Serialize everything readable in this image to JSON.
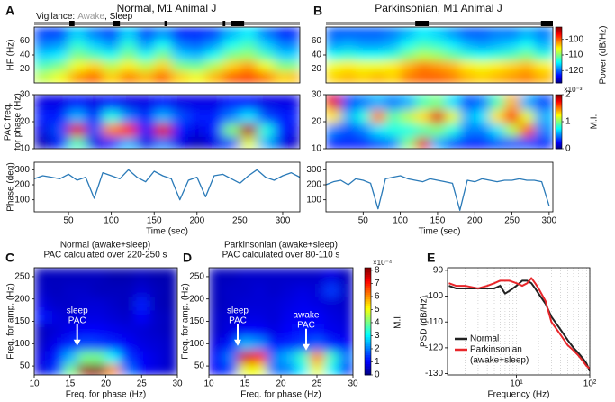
{
  "chart_data": [
    {
      "type": "heatmap",
      "letter": "A",
      "title": "Normal, M1 Animal J",
      "ylabel": "HF (Hz)",
      "vigilance": {
        "label": "Vigilance:",
        "awake": "Awake",
        "sleep": ", Sleep",
        "awake_color": "#9a9a9a",
        "sleep_color": "#000000",
        "sleep_intervals": [
          [
            51,
            57
          ],
          [
            102,
            110
          ],
          [
            162,
            165
          ],
          [
            230,
            233
          ],
          [
            240,
            255
          ]
        ]
      },
      "xlim": [
        10,
        320
      ],
      "ylim": [
        0,
        80
      ],
      "yticks": [
        20,
        40,
        60
      ],
      "zlim": [
        -128,
        -92
      ],
      "x": [
        20,
        40,
        60,
        80,
        100,
        120,
        140,
        160,
        180,
        200,
        220,
        240,
        260,
        280,
        300,
        320
      ],
      "y": [
        10,
        25,
        40,
        55,
        70
      ],
      "z": [
        [
          -108,
          -106,
          -102,
          -100,
          -104,
          -101,
          -103,
          -100,
          -104,
          -106,
          -103,
          -100,
          -99,
          -101,
          -104,
          -103
        ],
        [
          -112,
          -110,
          -106,
          -104,
          -108,
          -105,
          -108,
          -104,
          -110,
          -111,
          -108,
          -104,
          -102,
          -106,
          -110,
          -110
        ],
        [
          -116,
          -115,
          -110,
          -112,
          -114,
          -110,
          -114,
          -110,
          -116,
          -117,
          -114,
          -110,
          -109,
          -112,
          -116,
          -116
        ],
        [
          -119,
          -118,
          -113,
          -116,
          -118,
          -113,
          -118,
          -114,
          -119,
          -120,
          -118,
          -114,
          -112,
          -116,
          -119,
          -119
        ],
        [
          -121,
          -121,
          -116,
          -119,
          -121,
          -116,
          -121,
          -118,
          -122,
          -122,
          -121,
          -117,
          -115,
          -119,
          -122,
          -122
        ]
      ]
    },
    {
      "type": "heatmap",
      "ylabel": [
        "PAC freq.",
        "for phase (Hz)"
      ],
      "xlim": [
        10,
        320
      ],
      "ylim": [
        10,
        30
      ],
      "yticks": [
        10,
        20,
        30
      ],
      "zlim": [
        0,
        2
      ],
      "x": [
        20,
        40,
        60,
        80,
        100,
        120,
        140,
        160,
        180,
        200,
        220,
        240,
        260,
        280,
        300,
        320
      ],
      "y": [
        12,
        17,
        22,
        27
      ],
      "z": [
        [
          0.1,
          0.3,
          0.9,
          0.2,
          0.3,
          0.6,
          0.2,
          0.5,
          0.2,
          0.1,
          0.2,
          0.4,
          1.2,
          0.6,
          0.2,
          0.1
        ],
        [
          0.2,
          0.4,
          1.8,
          0.4,
          1.5,
          1.7,
          0.3,
          1.8,
          0.3,
          0.2,
          0.3,
          1.0,
          1.9,
          0.8,
          0.3,
          0.2
        ],
        [
          0.3,
          0.3,
          0.6,
          0.3,
          0.8,
          0.5,
          0.3,
          0.6,
          0.4,
          0.3,
          0.3,
          0.5,
          0.7,
          0.4,
          0.3,
          0.3
        ],
        [
          0.2,
          0.2,
          0.3,
          0.2,
          0.3,
          0.2,
          0.2,
          0.3,
          0.2,
          0.2,
          0.2,
          0.3,
          0.3,
          0.2,
          0.2,
          0.2
        ]
      ]
    },
    {
      "type": "line",
      "ylabel": "Phase (deg)",
      "xlabel": "Time (sec)",
      "color": "#2a7ab8",
      "xlim": [
        10,
        320
      ],
      "ylim": [
        20,
        350
      ],
      "xticks": [
        50,
        100,
        150,
        200,
        250,
        300
      ],
      "yticks": [
        100,
        200,
        300
      ],
      "x": [
        10,
        20,
        30,
        40,
        50,
        60,
        70,
        80,
        90,
        100,
        110,
        120,
        130,
        140,
        150,
        160,
        170,
        180,
        190,
        200,
        210,
        220,
        230,
        240,
        250,
        260,
        270,
        280,
        290,
        300,
        310,
        320
      ],
      "values": [
        240,
        260,
        250,
        240,
        270,
        230,
        250,
        110,
        280,
        260,
        240,
        300,
        250,
        220,
        290,
        260,
        240,
        100,
        230,
        250,
        120,
        260,
        270,
        240,
        210,
        260,
        300,
        250,
        230,
        260,
        280,
        250
      ]
    },
    {
      "type": "heatmap",
      "letter": "B",
      "title": "Parkinsonian, M1 Animal J",
      "vigilance": {
        "awake_color": "#9a9a9a",
        "sleep_color": "#000000",
        "sleep_intervals": [
          [
            120,
            138
          ],
          [
            289,
            305
          ]
        ]
      },
      "xlim": [
        0,
        305
      ],
      "ylim": [
        0,
        80
      ],
      "yticks": [
        20,
        40,
        60
      ],
      "zlim": [
        -128,
        -92
      ],
      "colorbar": {
        "label": "Power (dB/Hz)",
        "ticks": [
          -100,
          -110,
          -120
        ]
      },
      "x": [
        10,
        30,
        50,
        70,
        90,
        110,
        130,
        150,
        170,
        190,
        210,
        230,
        250,
        270,
        290
      ],
      "y": [
        10,
        25,
        40,
        55,
        70
      ],
      "z": [
        [
          -104,
          -103,
          -104,
          -103,
          -104,
          -101,
          -100,
          -100,
          -101,
          -103,
          -104,
          -103,
          -102,
          -101,
          -103
        ],
        [
          -106,
          -105,
          -106,
          -106,
          -105,
          -103,
          -101,
          -102,
          -103,
          -105,
          -106,
          -105,
          -104,
          -103,
          -105
        ],
        [
          -114,
          -113,
          -114,
          -114,
          -113,
          -110,
          -108,
          -109,
          -111,
          -113,
          -114,
          -113,
          -112,
          -110,
          -113
        ],
        [
          -118,
          -117,
          -118,
          -118,
          -117,
          -114,
          -112,
          -113,
          -115,
          -117,
          -118,
          -117,
          -116,
          -114,
          -117
        ],
        [
          -120,
          -120,
          -120,
          -120,
          -119,
          -117,
          -115,
          -116,
          -118,
          -120,
          -120,
          -119,
          -119,
          -117,
          -119
        ]
      ]
    },
    {
      "type": "heatmap",
      "xlim": [
        0,
        305
      ],
      "ylim": [
        10,
        30
      ],
      "yticks": [
        10,
        20,
        30
      ],
      "zlim": [
        0,
        2
      ],
      "colorbar": {
        "label": "M.I.",
        "exponent": "×10⁻³",
        "ticks": [
          0,
          1,
          2
        ]
      },
      "x": [
        10,
        30,
        50,
        70,
        90,
        110,
        130,
        150,
        170,
        190,
        210,
        230,
        250,
        270,
        290
      ],
      "y": [
        12,
        17,
        22,
        27
      ],
      "z": [
        [
          0.3,
          0.3,
          0.3,
          0.4,
          0.5,
          1.0,
          1.8,
          0.6,
          0.4,
          0.3,
          0.3,
          0.4,
          0.4,
          0.4,
          0.3
        ],
        [
          0.5,
          0.4,
          0.5,
          0.7,
          0.8,
          0.8,
          0.9,
          1.0,
          0.8,
          0.5,
          0.5,
          0.7,
          1.1,
          1.6,
          0.5
        ],
        [
          1.3,
          0.6,
          0.8,
          1.5,
          0.9,
          1.1,
          1.3,
          1.8,
          1.2,
          0.6,
          0.7,
          1.3,
          1.7,
          1.2,
          0.6
        ],
        [
          1.8,
          0.4,
          0.5,
          0.6,
          0.5,
          0.6,
          0.9,
          1.0,
          0.7,
          0.4,
          0.5,
          0.9,
          1.4,
          0.6,
          0.4
        ]
      ]
    },
    {
      "type": "line",
      "xlabel": "Time (sec)",
      "color": "#2a7ab8",
      "xlim": [
        0,
        305
      ],
      "ylim": [
        20,
        350
      ],
      "xticks": [
        50,
        100,
        150,
        200,
        250,
        300
      ],
      "yticks": [
        100,
        200,
        300
      ],
      "x": [
        0,
        10,
        20,
        30,
        40,
        50,
        60,
        70,
        80,
        90,
        100,
        110,
        120,
        130,
        140,
        150,
        160,
        170,
        180,
        190,
        200,
        210,
        220,
        230,
        240,
        250,
        260,
        270,
        280,
        290,
        300
      ],
      "values": [
        200,
        220,
        230,
        200,
        240,
        230,
        210,
        40,
        240,
        250,
        260,
        240,
        230,
        220,
        240,
        230,
        220,
        210,
        30,
        230,
        220,
        240,
        230,
        220,
        230,
        230,
        240,
        230,
        230,
        220,
        60
      ]
    },
    {
      "type": "heatmap",
      "letter": "C",
      "title": [
        "Normal (awake+sleep)",
        "PAC calculated over 220-250 s"
      ],
      "xlabel": "Freq. for phase (Hz)",
      "ylabel": "Freq. for amp. (Hz)",
      "xlim": [
        10,
        30
      ],
      "ylim": [
        30,
        270
      ],
      "xticks": [
        10,
        15,
        20,
        25,
        30
      ],
      "yticks": [
        50,
        100,
        150,
        200,
        250
      ],
      "zlim": [
        0,
        8.2
      ],
      "annotations": [
        {
          "lines": [
            "sleep",
            "PAC"
          ],
          "x": 16,
          "y": 95
        }
      ],
      "x": [
        11,
        13,
        15,
        17,
        19,
        21,
        23,
        25,
        27,
        29
      ],
      "y": [
        40,
        70,
        100,
        130,
        160,
        190,
        220,
        250
      ],
      "z": [
        [
          0.8,
          1.5,
          4,
          8,
          8.2,
          6,
          2,
          1,
          0.8,
          0.6
        ],
        [
          0.8,
          1.2,
          2.5,
          4,
          4,
          3,
          1.5,
          1,
          0.8,
          0.6
        ],
        [
          0.6,
          0.9,
          1.3,
          1.6,
          1.5,
          1.3,
          1,
          0.8,
          0.7,
          0.6
        ],
        [
          0.5,
          0.7,
          0.9,
          1,
          1,
          0.9,
          0.8,
          0.7,
          0.6,
          0.5
        ],
        [
          1.2,
          0.8,
          0.7,
          0.8,
          0.8,
          0.7,
          0.6,
          1,
          0.6,
          0.5
        ],
        [
          0.8,
          0.6,
          0.6,
          0.7,
          0.7,
          0.6,
          0.5,
          1.3,
          0.5,
          0.4
        ],
        [
          0.6,
          0.5,
          0.6,
          0.6,
          0.5,
          0.5,
          0.5,
          0.7,
          0.5,
          0.4
        ],
        [
          0.5,
          0.5,
          0.5,
          0.5,
          0.5,
          0.4,
          0.4,
          0.5,
          0.4,
          0.4
        ]
      ]
    },
    {
      "type": "heatmap",
      "letter": "D",
      "title": [
        "Parkinsonian (awake+sleep)",
        "PAC calculated over 80-110 s"
      ],
      "xlabel": "Freq. for phase (Hz)",
      "ylabel": "Freq. for amp. (Hz)",
      "xlim": [
        10,
        30
      ],
      "ylim": [
        30,
        270
      ],
      "xticks": [
        10,
        15,
        20,
        25,
        30
      ],
      "yticks": [
        50,
        100,
        150,
        200,
        250
      ],
      "zlim": [
        0,
        8.2
      ],
      "colorbar": {
        "label": "M.I.",
        "exponent": "×10⁻⁴",
        "ticks": [
          0,
          1,
          2,
          3,
          4,
          5,
          6,
          7,
          8
        ]
      },
      "annotations": [
        {
          "lines": [
            "sleep",
            "PAC"
          ],
          "x": 14,
          "y": 95
        },
        {
          "lines": [
            "awake",
            "PAC"
          ],
          "x": 23.5,
          "y": 85
        }
      ],
      "x": [
        11,
        13,
        15,
        17,
        19,
        21,
        23,
        25,
        27,
        29
      ],
      "y": [
        40,
        70,
        100,
        130,
        160,
        190,
        220,
        250
      ],
      "z": [
        [
          1,
          1.5,
          5,
          5,
          2,
          2,
          3,
          5,
          3,
          1.5
        ],
        [
          1,
          2,
          7.5,
          7,
          2,
          2.5,
          3.5,
          6,
          3.5,
          2
        ],
        [
          0.8,
          1.2,
          2.5,
          2.2,
          1.2,
          1.3,
          1.5,
          1.8,
          1.3,
          1
        ],
        [
          0.6,
          0.8,
          1,
          1,
          0.8,
          1,
          1.2,
          1.1,
          0.9,
          0.8
        ],
        [
          0.6,
          0.7,
          0.8,
          0.8,
          0.7,
          0.9,
          1,
          1,
          0.8,
          0.7
        ],
        [
          0.5,
          0.6,
          0.7,
          0.7,
          0.7,
          0.8,
          0.9,
          0.8,
          0.7,
          0.6
        ],
        [
          0.5,
          0.6,
          0.6,
          0.7,
          0.6,
          0.7,
          0.8,
          0.7,
          1.5,
          0.6
        ],
        [
          0.5,
          0.5,
          0.6,
          0.6,
          0.6,
          0.6,
          0.6,
          0.6,
          0.8,
          0.5
        ]
      ]
    },
    {
      "type": "line",
      "letter": "E",
      "xlabel": "Frequency (Hz)",
      "ylabel": "PSD (dB/Hz)",
      "xlog": true,
      "grid": "x",
      "legend": "lower left",
      "legend_note": "(awake+sleep)",
      "xlim": [
        1.15,
        100
      ],
      "ylim": [
        -130.5,
        -89
      ],
      "xticks": [
        {
          "value": 10,
          "label": "10¹"
        },
        {
          "value": 100,
          "label": "10²"
        }
      ],
      "yticks": [
        -90,
        -100,
        -110,
        -120,
        -130
      ],
      "x": [
        1.2,
        1.5,
        2,
        3,
        4,
        5,
        6,
        7,
        8,
        10,
        12,
        14,
        16,
        18,
        20,
        25,
        30,
        40,
        50,
        60,
        70,
        80,
        90,
        100
      ],
      "series": [
        {
          "name": "Normal",
          "color": "#222222",
          "values": [
            -96,
            -97,
            -97,
            -97,
            -97,
            -97,
            -96,
            -99,
            -98,
            -96,
            -94,
            -94,
            -95,
            -97,
            -99,
            -103,
            -108,
            -113,
            -117,
            -120,
            -122,
            -124,
            -126,
            -129
          ]
        },
        {
          "name": "Parkinsonian",
          "color": "#e8262a",
          "values": [
            -95,
            -96,
            -96,
            -97,
            -96,
            -95,
            -94,
            -94,
            -94,
            -95,
            -96,
            -95,
            -93,
            -95,
            -97,
            -102,
            -110,
            -115,
            -119,
            -121,
            -123,
            -125,
            -127,
            -128
          ]
        }
      ]
    }
  ]
}
